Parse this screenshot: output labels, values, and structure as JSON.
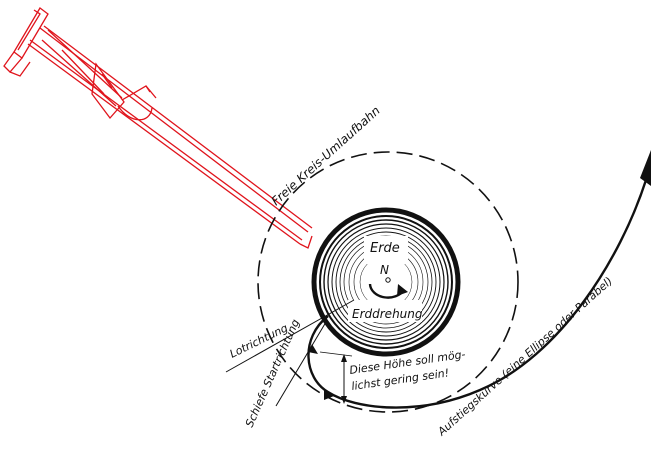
{
  "diagram": {
    "labels": {
      "orbit": "Freie Kreis-Umlaufbahn",
      "earth": "Erde",
      "north": "N",
      "rotation": "Erddrehung",
      "vertical": "Lotrichtung",
      "oblique_start": "Schiefe Startrichtung",
      "height_note_1": "Diese Höhe soll mög-",
      "height_note_2": "lichst gering sein!",
      "ascent_curve": "Aufstiegskurve (eine Ellipse oder Parabel)"
    },
    "colors": {
      "ink": "#111111",
      "overlay_red": "#e0141c",
      "background": "#ffffff"
    },
    "overlay": {
      "icon": "launch-rail-structure-icon"
    }
  }
}
